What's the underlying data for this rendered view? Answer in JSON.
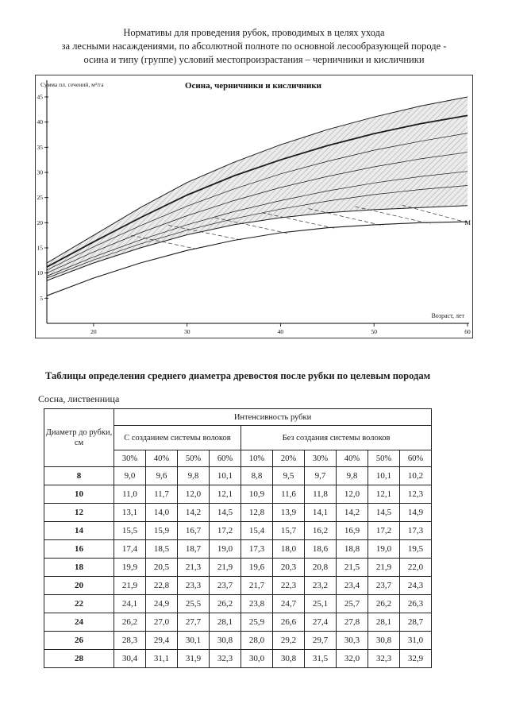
{
  "page": {
    "title_lines": [
      "Нормативы для проведения рубок, проводимых в целях ухода",
      "за лесными насаждениями, по абсолютной полноте по основной лесообразующей породе -",
      "осина и типу (группе) условий местопроизрастания – черничники и кисличники"
    ],
    "section_heading": "Таблицы определения среднего диаметра древостоя после рубки по целевым породам",
    "species_label": "Сосна, лиственница"
  },
  "chart_data": {
    "type": "line",
    "title": "Осина, черничники и кисличники",
    "ylabel": "Сумма пл. сечений, м²/га",
    "xlabel": "Возраст, лет",
    "m_label": "М",
    "xlim": [
      15,
      60
    ],
    "ylim": [
      0,
      48
    ],
    "xticks": [
      20,
      30,
      40,
      50,
      60
    ],
    "yticks": [
      5,
      10,
      15,
      20,
      25,
      30,
      35,
      40,
      45
    ],
    "grid": false,
    "legend": "none",
    "x": [
      15,
      20,
      25,
      30,
      35,
      40,
      45,
      50,
      55,
      60
    ],
    "series": [
      {
        "name": "upper",
        "width": 1.0,
        "values": [
          12.0,
          17.5,
          23.0,
          28.0,
          32.0,
          35.5,
          38.5,
          41.0,
          43.2,
          45.0
        ]
      },
      {
        "name": "main_bold",
        "width": 1.8,
        "values": [
          11.2,
          16.2,
          21.0,
          25.5,
          29.3,
          32.5,
          35.3,
          37.7,
          39.7,
          41.3
        ]
      },
      {
        "name": "mid3",
        "width": 0.7,
        "values": [
          10.6,
          15.2,
          19.4,
          23.3,
          26.7,
          29.7,
          32.2,
          34.4,
          36.2,
          37.8
        ]
      },
      {
        "name": "mid4",
        "width": 0.7,
        "values": [
          10.0,
          14.2,
          18.0,
          21.4,
          24.4,
          27.0,
          29.2,
          31.1,
          32.7,
          34.0
        ]
      },
      {
        "name": "mid5",
        "width": 0.7,
        "values": [
          9.4,
          13.2,
          16.6,
          19.6,
          22.2,
          24.4,
          26.3,
          27.9,
          29.2,
          30.2
        ]
      },
      {
        "name": "mid6",
        "width": 0.7,
        "values": [
          9.0,
          12.6,
          15.8,
          18.5,
          20.8,
          22.7,
          24.3,
          25.6,
          26.6,
          27.4
        ]
      },
      {
        "name": "band_bottom",
        "width": 1.0,
        "values": [
          8.5,
          12.0,
          15.0,
          17.6,
          19.6,
          21.0,
          22.0,
          22.6,
          23.0,
          23.4
        ]
      },
      {
        "name": "M",
        "width": 1.1,
        "values": [
          5.5,
          9.0,
          12.0,
          14.5,
          16.5,
          18.0,
          19.0,
          19.6,
          20.0,
          20.2
        ]
      }
    ],
    "dashed_lines": [
      {
        "x1": 24,
        "y1": 17.5,
        "x2": 31,
        "y2": 14.8
      },
      {
        "x1": 28,
        "y1": 19.5,
        "x2": 36,
        "y2": 16.5
      },
      {
        "x1": 33,
        "y1": 21.0,
        "x2": 41,
        "y2": 17.8
      },
      {
        "x1": 38,
        "y1": 22.0,
        "x2": 46,
        "y2": 18.8
      },
      {
        "x1": 43,
        "y1": 22.8,
        "x2": 51,
        "y2": 19.4
      },
      {
        "x1": 48,
        "y1": 23.2,
        "x2": 56,
        "y2": 19.8
      },
      {
        "x1": 53,
        "y1": 23.5,
        "x2": 60,
        "y2": 20.0
      }
    ]
  },
  "table": {
    "row_header": "Диаметр до рубки, см",
    "col_group_header": "Интенсивность рубки",
    "group1_label": "С созданием системы волоков",
    "group2_label": "Без создания системы волоков",
    "group1_cols": [
      "30%",
      "40%",
      "50%",
      "60%"
    ],
    "group2_cols": [
      "10%",
      "20%",
      "30%",
      "40%",
      "50%",
      "60%"
    ],
    "rows": [
      {
        "d": "8",
        "values": [
          "9,0",
          "9,6",
          "9,8",
          "10,1",
          "8,8",
          "9,5",
          "9,7",
          "9,8",
          "10,1",
          "10,2"
        ]
      },
      {
        "d": "10",
        "values": [
          "11,0",
          "11,7",
          "12,0",
          "12,1",
          "10,9",
          "11,6",
          "11,8",
          "12,0",
          "12,1",
          "12,3"
        ]
      },
      {
        "d": "12",
        "values": [
          "13,1",
          "14,0",
          "14,2",
          "14,5",
          "12,8",
          "13,9",
          "14,1",
          "14,2",
          "14,5",
          "14,9"
        ]
      },
      {
        "d": "14",
        "values": [
          "15,5",
          "15,9",
          "16,7",
          "17,2",
          "15,4",
          "15,7",
          "16,2",
          "16,9",
          "17,2",
          "17,3"
        ]
      },
      {
        "d": "16",
        "values": [
          "17,4",
          "18,5",
          "18,7",
          "19,0",
          "17,3",
          "18,0",
          "18,6",
          "18,8",
          "19,0",
          "19,5"
        ]
      },
      {
        "d": "18",
        "values": [
          "19,9",
          "20,5",
          "21,3",
          "21,9",
          "19,6",
          "20,3",
          "20,8",
          "21,5",
          "21,9",
          "22,0"
        ]
      },
      {
        "d": "20",
        "values": [
          "21,9",
          "22,8",
          "23,3",
          "23,7",
          "21,7",
          "22,3",
          "23,2",
          "23,4",
          "23,7",
          "24,3"
        ]
      },
      {
        "d": "22",
        "values": [
          "24,1",
          "24,9",
          "25,5",
          "26,2",
          "23,8",
          "24,7",
          "25,1",
          "25,7",
          "26,2",
          "26,3"
        ]
      },
      {
        "d": "24",
        "values": [
          "26,2",
          "27,0",
          "27,7",
          "28,1",
          "25,9",
          "26,6",
          "27,4",
          "27,8",
          "28,1",
          "28,7"
        ]
      },
      {
        "d": "26",
        "values": [
          "28,3",
          "29,4",
          "30,1",
          "30,8",
          "28,0",
          "29,2",
          "29,7",
          "30,3",
          "30,8",
          "31,0"
        ]
      },
      {
        "d": "28",
        "values": [
          "30,4",
          "31,1",
          "31,9",
          "32,3",
          "30,0",
          "30,8",
          "31,5",
          "32,0",
          "32,3",
          "32,9"
        ]
      }
    ]
  }
}
